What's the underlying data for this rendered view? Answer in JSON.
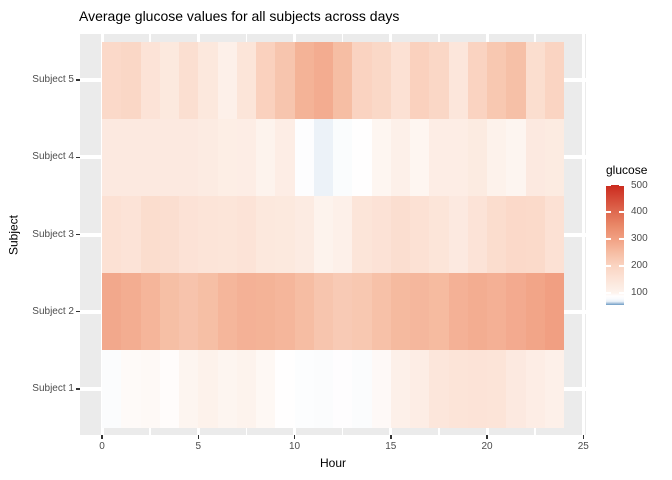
{
  "title": "Average glucose values for all subjects across days",
  "x_axis": {
    "label": "Hour",
    "major_ticks": [
      0,
      5,
      10,
      15,
      20,
      25
    ],
    "minor_ticks": [
      2.5,
      7.5,
      12.5,
      17.5,
      22.5
    ],
    "range_shown": [
      -1.2,
      25.2
    ]
  },
  "y_axis": {
    "label": "Subject",
    "categories_top_to_bottom": [
      "Subject 5",
      "Subject 4",
      "Subject 3",
      "Subject 2",
      "Subject 1"
    ]
  },
  "legend": {
    "title": "glucose",
    "tick_labels": [
      500,
      400,
      300,
      200,
      100
    ],
    "value_range": [
      55,
      500
    ],
    "position": "right"
  },
  "colors": {
    "panel_bg": "#EBEBEB",
    "gridline": "#FFFFFF",
    "tick_label": "#4D4D4D",
    "tick_mark": "#333333",
    "title": "#000000",
    "high": "#CB2A1E",
    "mid": "#FFFEFE",
    "low": "#6D9CC6"
  },
  "chart_data": {
    "type": "heatmap",
    "title": "Average glucose values for all subjects across days",
    "xlabel": "Hour",
    "ylabel": "Subject",
    "x_hours": [
      0,
      1,
      2,
      3,
      4,
      5,
      6,
      7,
      8,
      9,
      10,
      11,
      12,
      13,
      14,
      15,
      16,
      17,
      18,
      19,
      20,
      21,
      22,
      23
    ],
    "tile_x_extent": [
      0,
      24
    ],
    "rows_top_to_bottom": [
      "Subject 5",
      "Subject 4",
      "Subject 3",
      "Subject 2",
      "Subject 1"
    ],
    "series": [
      {
        "name": "Subject 5",
        "values": [
          185,
          190,
          152,
          135,
          167,
          138,
          110,
          147,
          206,
          232,
          268,
          280,
          248,
          202,
          188,
          160,
          206,
          192,
          143,
          202,
          227,
          244,
          170,
          200
        ]
      },
      {
        "name": "Subject 4",
        "values": [
          132,
          132,
          132,
          132,
          132,
          127,
          118,
          120,
          100,
          120,
          85,
          70,
          80,
          88,
          97,
          110,
          97,
          120,
          120,
          128,
          105,
          98,
          132,
          128
        ]
      },
      {
        "name": "Subject 3",
        "values": [
          160,
          152,
          172,
          168,
          155,
          150,
          147,
          152,
          138,
          135,
          127,
          100,
          110,
          147,
          155,
          168,
          158,
          147,
          132,
          152,
          172,
          185,
          182,
          160
        ]
      },
      {
        "name": "Subject 2",
        "values": [
          286,
          278,
          264,
          246,
          236,
          246,
          262,
          270,
          268,
          262,
          250,
          232,
          221,
          227,
          242,
          256,
          260,
          254,
          270,
          278,
          272,
          282,
          292,
          302
        ]
      },
      {
        "name": "Subject 1",
        "values": [
          82,
          92,
          94,
          90,
          98,
          105,
          98,
          100,
          95,
          88,
          83,
          82,
          86,
          82,
          93,
          110,
          120,
          143,
          150,
          152,
          149,
          132,
          119,
          109
        ]
      }
    ],
    "color_scale": {
      "type": "diverging-blue-white-red",
      "stops": [
        [
          55,
          "#6d9cc6"
        ],
        [
          60,
          "#9dbbd7"
        ],
        [
          68,
          "#e9f0f7"
        ],
        [
          78,
          "#f9fbfd"
        ],
        [
          88,
          "#fffefe"
        ],
        [
          100,
          "#fdf3ed"
        ],
        [
          150,
          "#fce4d8"
        ],
        [
          200,
          "#fad4c2"
        ],
        [
          250,
          "#f6bda3"
        ],
        [
          300,
          "#f1a083"
        ],
        [
          350,
          "#e98868"
        ],
        [
          400,
          "#df6a50"
        ],
        [
          450,
          "#d54a37"
        ],
        [
          500,
          "#cb2a1e"
        ]
      ]
    },
    "grid": "white major+minor verticals, white major horizontals, ggplot grey theme",
    "legend_position": "right"
  }
}
